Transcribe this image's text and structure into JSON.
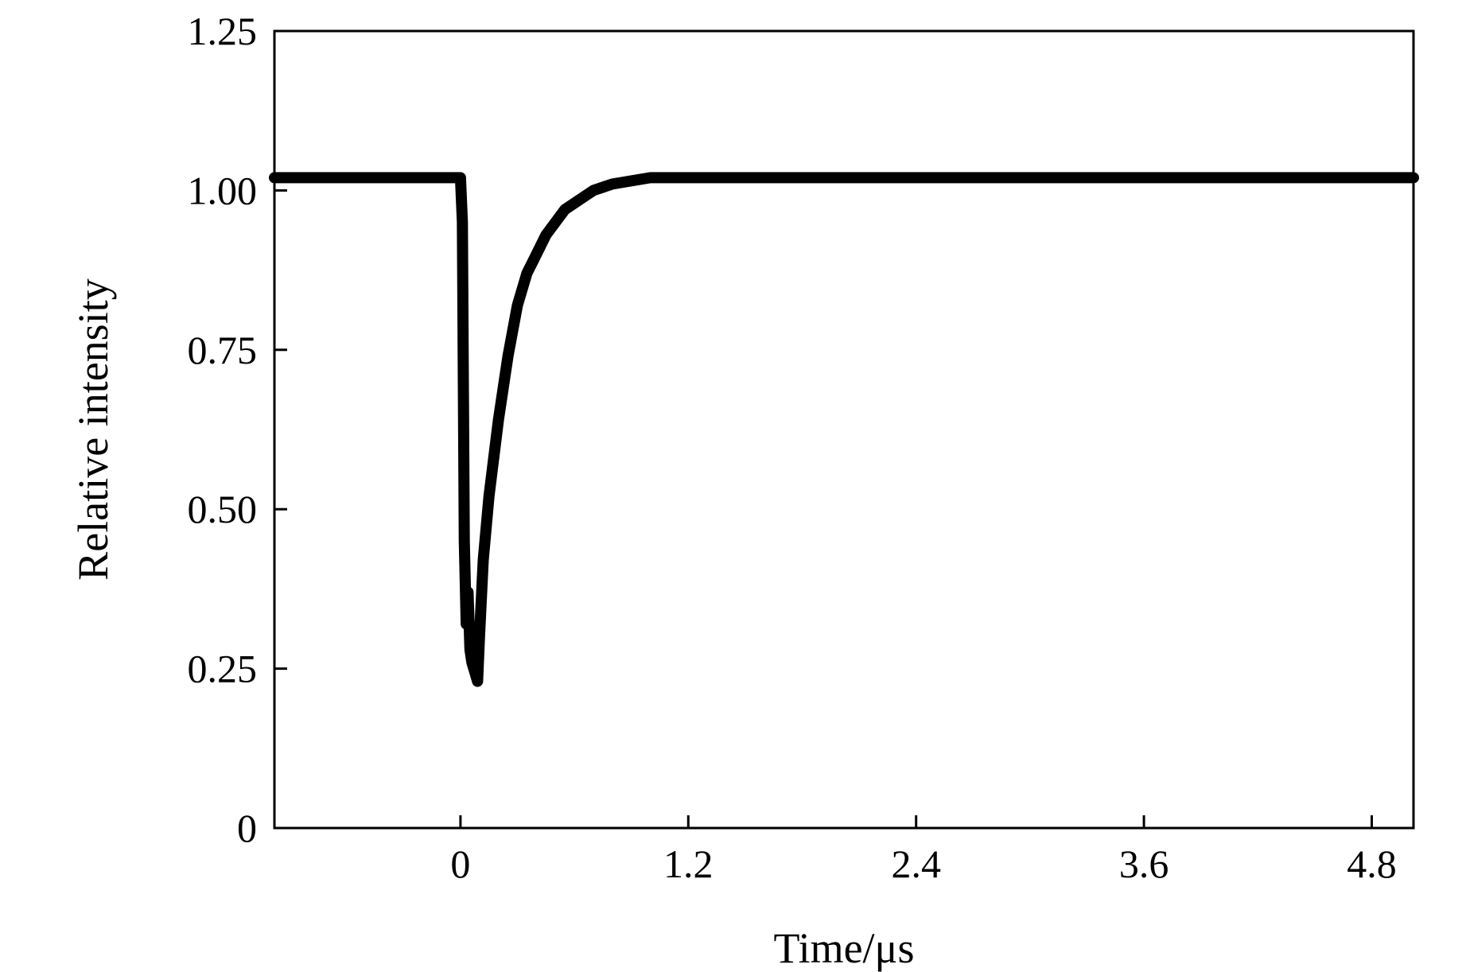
{
  "chart_data": {
    "type": "line",
    "title": "",
    "xlabel": "Time/μs",
    "ylabel": "Relative intensity",
    "xlim": [
      -0.98,
      5.02
    ],
    "ylim": [
      0,
      1.25
    ],
    "xticks": [
      0,
      1.2,
      2.4,
      3.6,
      4.8
    ],
    "xtick_labels": [
      "0",
      "1.2",
      "2.4",
      "3.6",
      "4.8"
    ],
    "yticks": [
      0,
      0.25,
      0.5,
      0.75,
      1.0,
      1.25
    ],
    "ytick_labels": [
      "0",
      "0.25",
      "0.50",
      "0.75",
      "1.00",
      "1.25"
    ],
    "grid": false,
    "legend": "none",
    "line_color": "#000000",
    "series": [
      {
        "x": [
          -0.98,
          -0.5,
          0.0,
          0.01,
          0.015,
          0.02,
          0.03,
          0.04,
          0.05,
          0.06,
          0.07,
          0.08,
          0.09,
          0.1,
          0.12,
          0.15,
          0.2,
          0.25,
          0.3,
          0.35,
          0.4,
          0.45,
          0.5,
          0.55,
          0.6,
          0.7,
          0.8,
          0.9,
          1.0,
          1.2,
          2.0,
          3.0,
          4.0,
          5.02
        ],
        "y": [
          1.02,
          1.02,
          1.02,
          0.95,
          0.7,
          0.45,
          0.32,
          0.37,
          0.28,
          0.26,
          0.25,
          0.24,
          0.23,
          0.3,
          0.42,
          0.52,
          0.64,
          0.74,
          0.82,
          0.87,
          0.9,
          0.93,
          0.95,
          0.97,
          0.98,
          1.0,
          1.01,
          1.015,
          1.02,
          1.02,
          1.02,
          1.02,
          1.02,
          1.02
        ]
      }
    ]
  }
}
